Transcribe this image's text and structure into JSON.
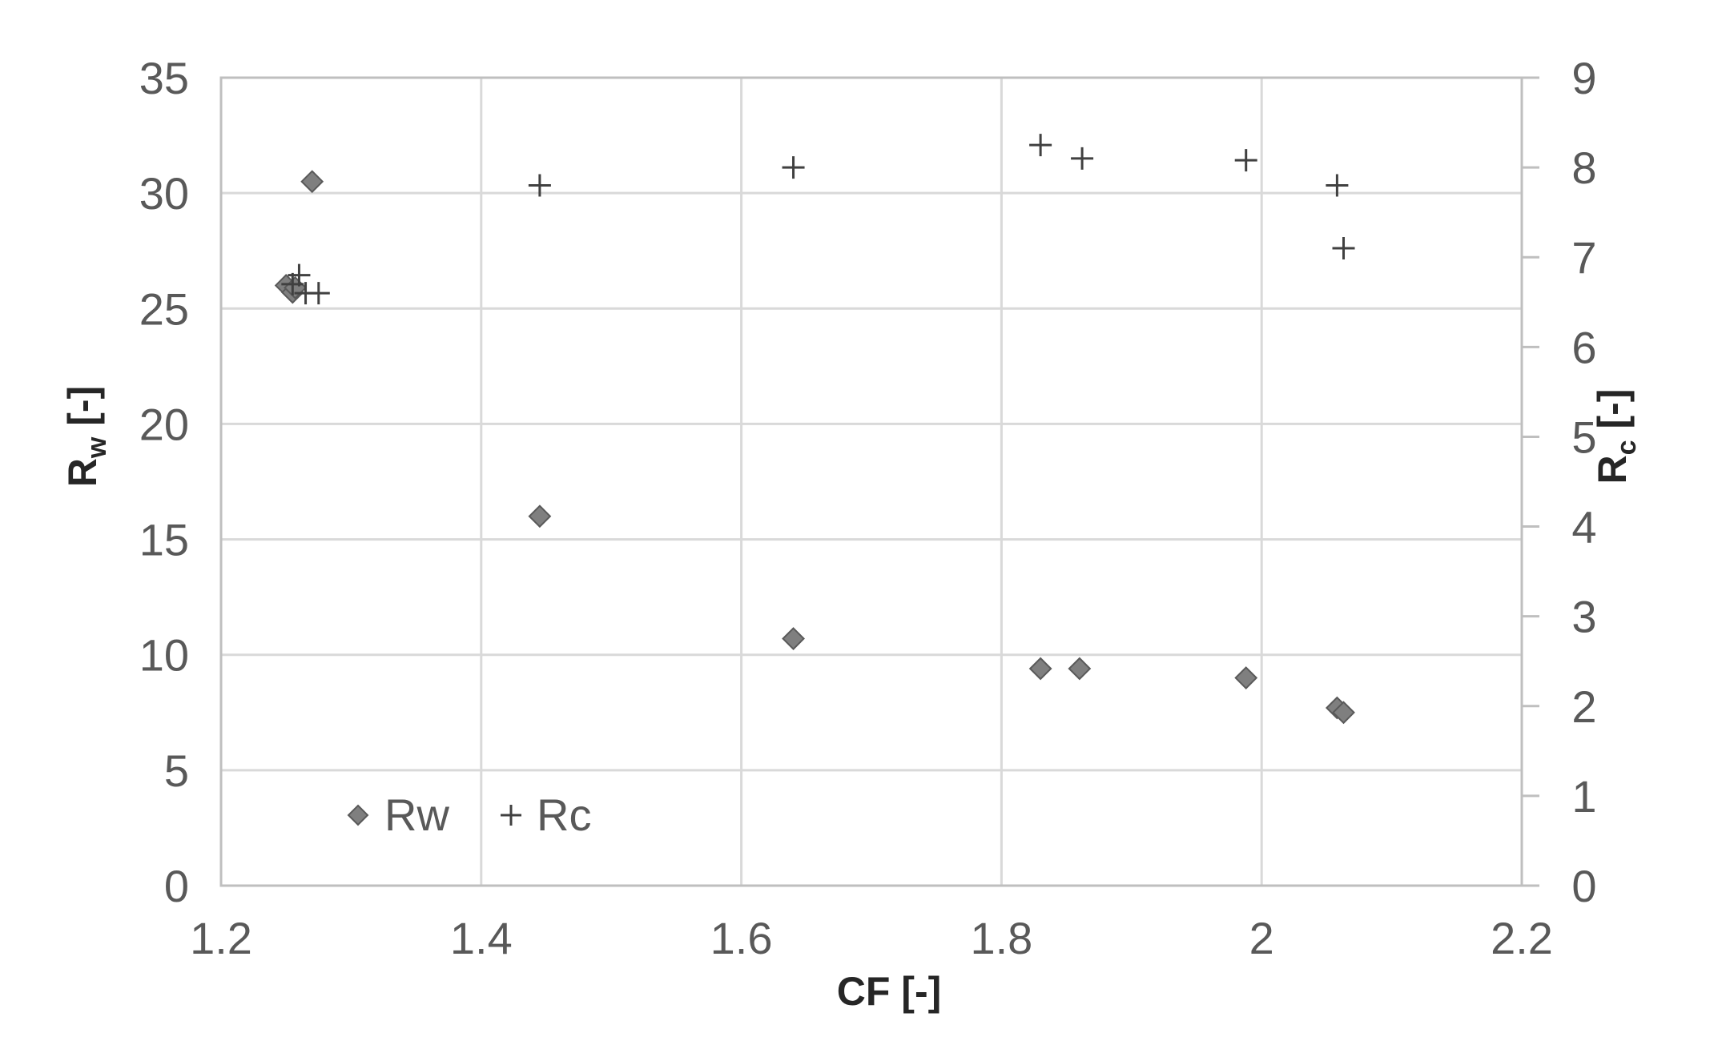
{
  "chart_data": {
    "type": "scatter",
    "xlabel": "CF [-]",
    "ylabel": {
      "main": "R",
      "sub": "w",
      "suffix": " [-]"
    },
    "y2label": {
      "main": "R",
      "sub": "c",
      "suffix": " [-]"
    },
    "xlim": [
      1.2,
      2.2
    ],
    "ylim": [
      0,
      35
    ],
    "y2lim": [
      0,
      9
    ],
    "x_ticks": [
      "1.2",
      "1.4",
      "1.6",
      "1.8",
      "2",
      "2.2"
    ],
    "y_ticks": [
      "0",
      "5",
      "10",
      "15",
      "20",
      "25",
      "30",
      "35"
    ],
    "y2_ticks": [
      "0",
      "1",
      "2",
      "3",
      "4",
      "5",
      "6",
      "7",
      "8",
      "9"
    ],
    "grid": true,
    "legend_position": "bottom-left",
    "series": [
      {
        "name": "Rw",
        "axis": "left",
        "marker": "diamond",
        "color": "#7f7f7f",
        "points": [
          [
            1.25,
            26.0
          ],
          [
            1.255,
            25.7
          ],
          [
            1.257,
            25.9
          ],
          [
            1.27,
            30.5
          ],
          [
            1.445,
            16.0
          ],
          [
            1.64,
            10.7
          ],
          [
            1.83,
            9.4
          ],
          [
            1.86,
            9.4
          ],
          [
            1.988,
            9.0
          ],
          [
            2.058,
            7.7
          ],
          [
            2.063,
            7.5
          ]
        ]
      },
      {
        "name": "Rc",
        "axis": "right",
        "marker": "plus",
        "color": "#404040",
        "points": [
          [
            1.255,
            6.7
          ],
          [
            1.26,
            6.8
          ],
          [
            1.265,
            6.6
          ],
          [
            1.275,
            6.6
          ],
          [
            1.445,
            7.8
          ],
          [
            1.64,
            8.0
          ],
          [
            1.83,
            8.25
          ],
          [
            1.862,
            8.1
          ],
          [
            1.988,
            8.08
          ],
          [
            2.058,
            7.8
          ],
          [
            2.063,
            7.1
          ]
        ]
      }
    ]
  }
}
